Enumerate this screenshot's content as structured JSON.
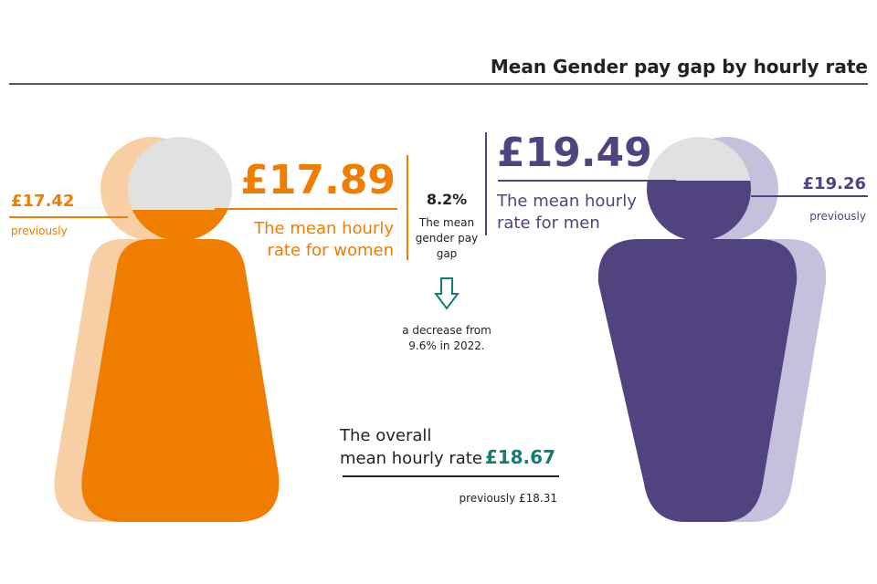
{
  "title": "Mean Gender pay gap by hourly rate",
  "women": {
    "value": "£17.89",
    "label": [
      "The mean hourly",
      "rate for women"
    ],
    "previous_value": "£17.42",
    "previous_label": "previously"
  },
  "men": {
    "value": "£19.49",
    "label": [
      "The mean hourly",
      "rate for men"
    ],
    "previous_value": "£19.26",
    "previous_label": "previously"
  },
  "gap": {
    "value": "8.2%",
    "label": [
      "The mean",
      "gender pay",
      "gap"
    ],
    "change": [
      "a decrease from",
      "9.6% in 2022."
    ]
  },
  "overall": {
    "label": [
      "The overall",
      "mean hourly rate"
    ],
    "value": "£18.67",
    "previous": "previously £18.31"
  }
}
